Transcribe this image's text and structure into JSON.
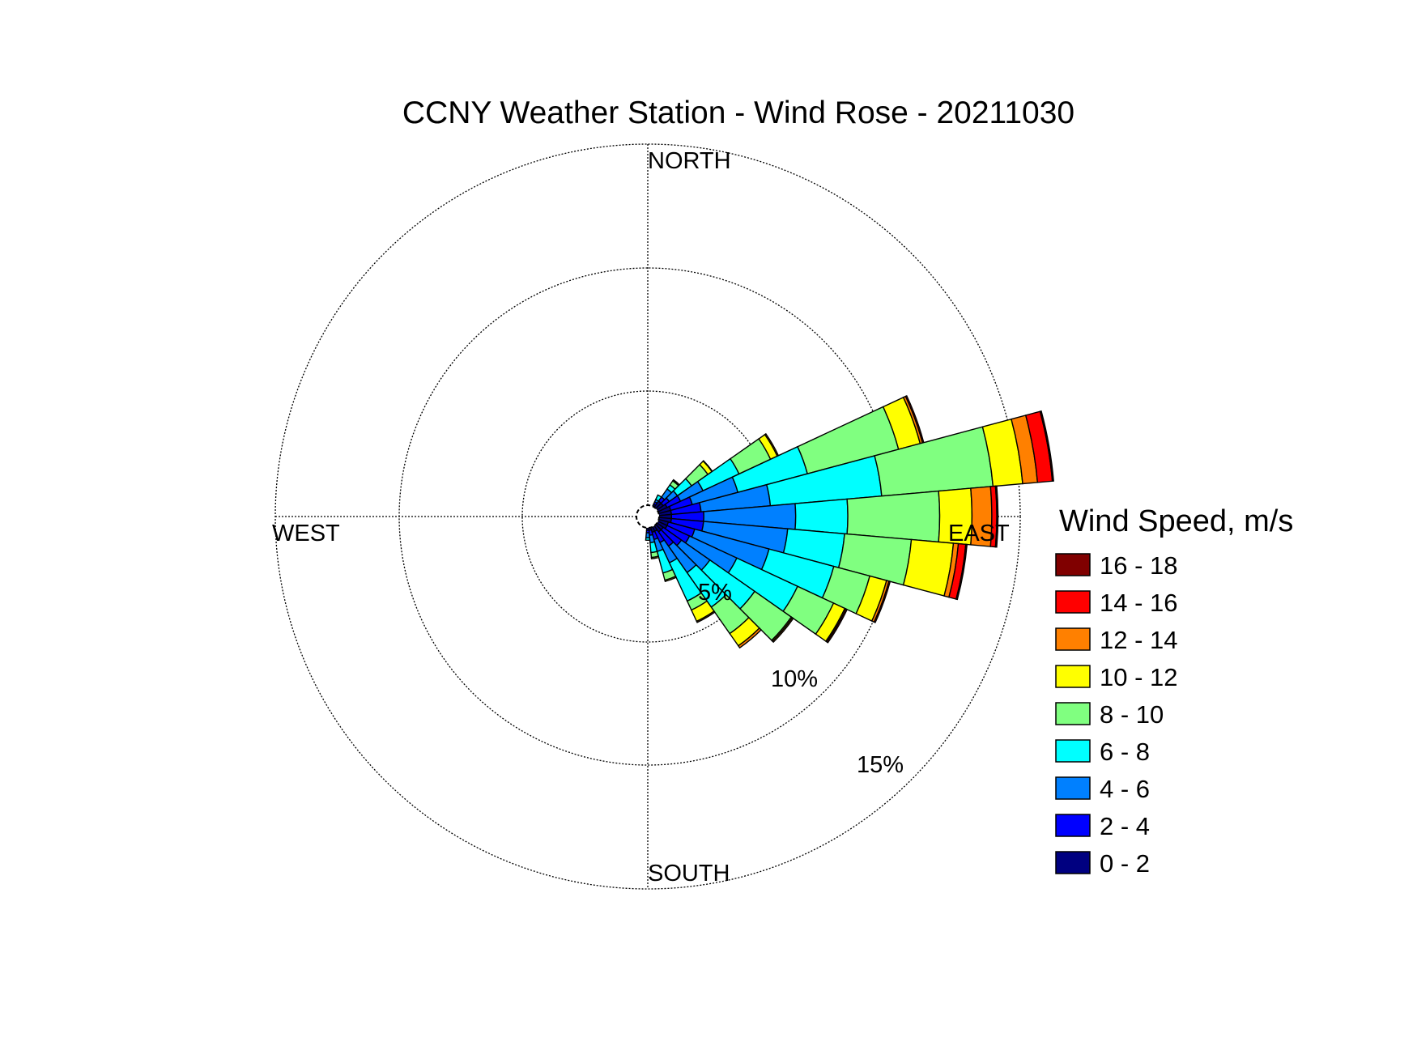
{
  "chart_data": {
    "type": "wind_rose",
    "title": "CCNY Weather Station - Wind Rose - 20211030",
    "direction_labels": {
      "north": "NORTH",
      "east": "EAST",
      "south": "SOUTH",
      "west": "WEST"
    },
    "radial_ticks": [
      {
        "value": 5,
        "label": "5%"
      },
      {
        "value": 10,
        "label": "10%"
      },
      {
        "value": 15,
        "label": "15%"
      }
    ],
    "radial_max": 15,
    "legend": {
      "title": "Wind Speed, m/s",
      "bins": [
        {
          "label": "16 - 18",
          "color": "#800000"
        },
        {
          "label": "14 - 16",
          "color": "#ff0000"
        },
        {
          "label": "12 - 14",
          "color": "#ff8000"
        },
        {
          "label": "10 - 12",
          "color": "#ffff00"
        },
        {
          "label": "8 - 10",
          "color": "#80ff80"
        },
        {
          "label": "6 - 8",
          "color": "#00ffff"
        },
        {
          "label": "4 - 6",
          "color": "#0080ff"
        },
        {
          "label": "2 - 4",
          "color": "#0000ff"
        },
        {
          "label": "0 - 2",
          "color": "#000080"
        }
      ]
    },
    "speed_bins": [
      "0 - 2",
      "2 - 4",
      "4 - 6",
      "6 - 8",
      "8 - 10",
      "10 - 12",
      "12 - 14",
      "14 - 16",
      "16 - 18"
    ],
    "bin_colors": [
      "#000080",
      "#0000ff",
      "#0080ff",
      "#00ffff",
      "#80ff80",
      "#ffff00",
      "#ff8000",
      "#ff0000",
      "#800000"
    ],
    "sector_width_deg": 10,
    "sectors": [
      {
        "direction_deg": 30,
        "cumulative": [
          0.1,
          0.2,
          0.3,
          0.5
        ]
      },
      {
        "direction_deg": 40,
        "cumulative": [
          0.3,
          0.5,
          0.9,
          1.1,
          1.3,
          1.35
        ]
      },
      {
        "direction_deg": 50,
        "cumulative": [
          0.3,
          0.6,
          1.0,
          1.7,
          2.5,
          2.7,
          2.72
        ]
      },
      {
        "direction_deg": 60,
        "cumulative": [
          0.4,
          1.0,
          2.0,
          3.6,
          5.0,
          5.3,
          5.35
        ]
      },
      {
        "direction_deg": 70,
        "cumulative": [
          0.5,
          1.4,
          3.3,
          6.2,
          10.0,
          10.9,
          11.0,
          11.05
        ]
      },
      {
        "direction_deg": 80,
        "cumulative": [
          0.5,
          1.7,
          4.5,
          9.0,
          13.5,
          14.7,
          15.3,
          15.9,
          15.95
        ]
      },
      {
        "direction_deg": 90,
        "cumulative": [
          0.5,
          1.8,
          5.5,
          7.6,
          11.3,
          12.6,
          13.4,
          13.6,
          13.65
        ]
      },
      {
        "direction_deg": 100,
        "cumulative": [
          0.5,
          1.8,
          5.2,
          7.5,
          10.2,
          11.9,
          12.1,
          12.4,
          12.45
        ]
      },
      {
        "direction_deg": 110,
        "cumulative": [
          0.4,
          1.5,
          4.6,
          7.3,
          8.8,
          9.5,
          9.6,
          9.65
        ]
      },
      {
        "direction_deg": 120,
        "cumulative": [
          0.4,
          1.4,
          3.5,
          6.2,
          7.8,
          8.3,
          8.35,
          8.4
        ]
      },
      {
        "direction_deg": 130,
        "cumulative": [
          0.3,
          1.2,
          2.6,
          4.8,
          6.6,
          6.65,
          6.7
        ]
      },
      {
        "direction_deg": 140,
        "cumulative": [
          0.3,
          1.0,
          2.3,
          4.0,
          5.3,
          5.9,
          6.0
        ]
      },
      {
        "direction_deg": 150,
        "cumulative": [
          0.2,
          0.7,
          1.6,
          3.3,
          3.7,
          4.2,
          4.25
        ]
      },
      {
        "direction_deg": 160,
        "cumulative": [
          0.2,
          0.5,
          1.0,
          1.9,
          2.2,
          2.25
        ]
      },
      {
        "direction_deg": 170,
        "cumulative": [
          0.1,
          0.3,
          0.6,
          1.0,
          1.2,
          1.25
        ]
      },
      {
        "direction_deg": 180,
        "cumulative": [
          0.1,
          0.2,
          0.4,
          0.5
        ]
      }
    ]
  }
}
